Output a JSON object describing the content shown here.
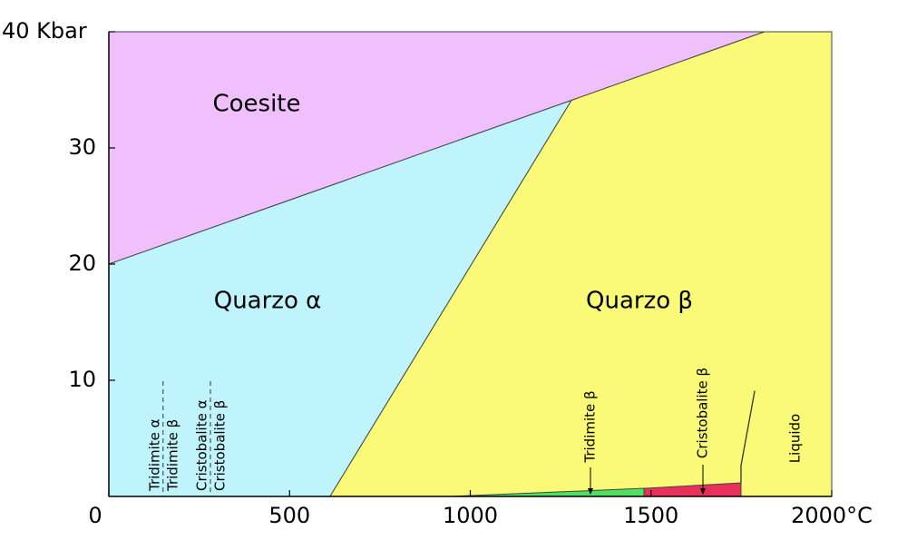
{
  "chart_data": {
    "type": "phase-diagram",
    "xlim": [
      0,
      2000
    ],
    "ylim": [
      0,
      40
    ],
    "xticks": [
      0,
      500,
      1000,
      1500,
      {
        "value": 2000,
        "label": "2000°C"
      }
    ],
    "yticks": [
      10,
      20,
      30,
      {
        "value": 40,
        "label": "40 Kbar"
      }
    ],
    "regions": [
      {
        "name": "Coesite",
        "color": "#f0c0fc",
        "x": [
          0,
          0,
          1814,
          1280
        ],
        "y": [
          20,
          40,
          40,
          34.1
        ]
      },
      {
        "name": "Quarzo α",
        "color": "#bff4fc",
        "x": [
          0,
          0,
          1280,
          612
        ],
        "y": [
          0,
          20,
          34.1,
          0
        ]
      },
      {
        "name": "Quarzo β",
        "color": "#fafa78",
        "x": [
          612,
          1280,
          1814,
          2000,
          2000
        ],
        "y": [
          0,
          34.1,
          40,
          40,
          0
        ]
      },
      {
        "name": "Tridimite β",
        "color": "#50e060",
        "x": [
          946,
          1481,
          1481
        ],
        "y": [
          0,
          0.7,
          0
        ]
      },
      {
        "name": "Cristobalite β",
        "color": "#e8305a",
        "x": [
          1481,
          1481,
          1749,
          1749
        ],
        "y": [
          0,
          0.7,
          1.17,
          0
        ]
      }
    ],
    "boundary": {
      "x": [
        1749,
        1749,
        1787
      ],
      "y": [
        1.17,
        2.65,
        9.1
      ]
    },
    "liquid_label": "Liquido",
    "transitions": [
      {
        "x": 150,
        "labels": [
          "Tridimite α",
          "Tridimite β"
        ]
      },
      {
        "x": 281,
        "labels": [
          "Cristobalite α",
          "Cristobalite β"
        ]
      }
    ]
  }
}
